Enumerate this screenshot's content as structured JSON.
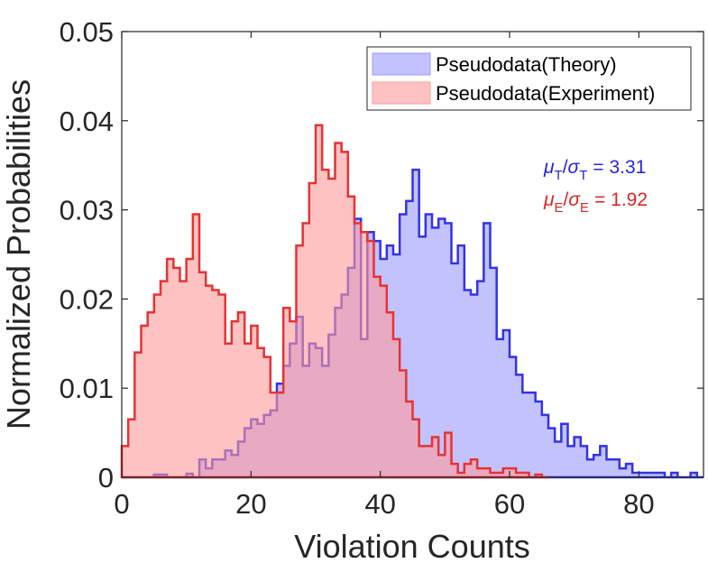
{
  "chart_data": {
    "type": "histogram",
    "xlabel": "Violation Counts",
    "ylabel": "Normalized Probabilities",
    "xlim": [
      0,
      90
    ],
    "ylim": [
      0,
      0.05
    ],
    "xticks": [
      0,
      20,
      40,
      60,
      80
    ],
    "xtick_labels": [
      "0",
      "20",
      "40",
      "60",
      "80"
    ],
    "yticks": [
      0,
      0.01,
      0.02,
      0.03,
      0.04,
      0.05
    ],
    "ytick_labels": [
      "0",
      "0.01",
      "0.02",
      "0.03",
      "0.04",
      "0.05"
    ],
    "bin_width": 1,
    "legend_position": "top-right",
    "series": [
      {
        "name": "Pseudodata(Theory)",
        "color": "#3333e6",
        "fill": "#9999ff",
        "bin_start": 0,
        "values": [
          0,
          0,
          0,
          0,
          0,
          0.0003,
          0.0003,
          0,
          0,
          0,
          0.0004,
          0,
          0.002,
          0.001,
          0.002,
          0.002,
          0.003,
          0.0025,
          0.004,
          0.0055,
          0.0065,
          0.006,
          0.007,
          0.0075,
          0.0105,
          0.0125,
          0.015,
          0.018,
          0.0125,
          0.015,
          0.0145,
          0.0125,
          0.016,
          0.019,
          0.0205,
          0.0235,
          0.029,
          0.0155,
          0.0275,
          0.0265,
          0.0245,
          0.026,
          0.025,
          0.0295,
          0.031,
          0.0345,
          0.027,
          0.0295,
          0.028,
          0.029,
          0.0285,
          0.024,
          0.026,
          0.021,
          0.0205,
          0.022,
          0.0285,
          0.0235,
          0.0155,
          0.0165,
          0.0135,
          0.0115,
          0.0095,
          0.0095,
          0.0085,
          0.007,
          0.0055,
          0.004,
          0.006,
          0.0035,
          0.0045,
          0.0035,
          0.002,
          0.0025,
          0.0035,
          0.002,
          0.002,
          0.001,
          0.0015,
          0.0005,
          0.0005,
          0.0005,
          0.0005,
          0.0005,
          0,
          0.0005,
          0,
          0,
          0.0005,
          0
        ]
      },
      {
        "name": "Pseudodata(Experiment)",
        "color": "#e63333",
        "fill": "#ff9999",
        "bin_start": 0,
        "values": [
          0.0035,
          0.0065,
          0.014,
          0.017,
          0.0185,
          0.0205,
          0.022,
          0.0245,
          0.0235,
          0.022,
          0.0245,
          0.0295,
          0.023,
          0.0215,
          0.021,
          0.0205,
          0.015,
          0.0175,
          0.0185,
          0.015,
          0.017,
          0.0145,
          0.0135,
          0.0095,
          0.0095,
          0.019,
          0.0175,
          0.026,
          0.0285,
          0.033,
          0.0395,
          0.0345,
          0.0335,
          0.0375,
          0.0365,
          0.0315,
          0.0285,
          0.0275,
          0.0265,
          0.0225,
          0.0215,
          0.0185,
          0.0155,
          0.012,
          0.0085,
          0.0065,
          0.0035,
          0.0035,
          0.0045,
          0.0025,
          0.005,
          0.0015,
          0.0005,
          0.0015,
          0.002,
          0.001,
          0.001,
          0.0005,
          0.0005,
          0.001,
          0.001,
          0.0005,
          0.0005,
          0,
          0.0003,
          0
        ]
      }
    ],
    "annotations": [
      {
        "numerator": "μ",
        "num_sub": "T",
        "denominator": "σ",
        "den_sub": "T",
        "value": "= 3.31",
        "color": "#2626d9"
      },
      {
        "numerator": "μ",
        "num_sub": "E",
        "denominator": "σ",
        "den_sub": "E",
        "value": "= 1.92",
        "color": "#d92626"
      }
    ]
  }
}
